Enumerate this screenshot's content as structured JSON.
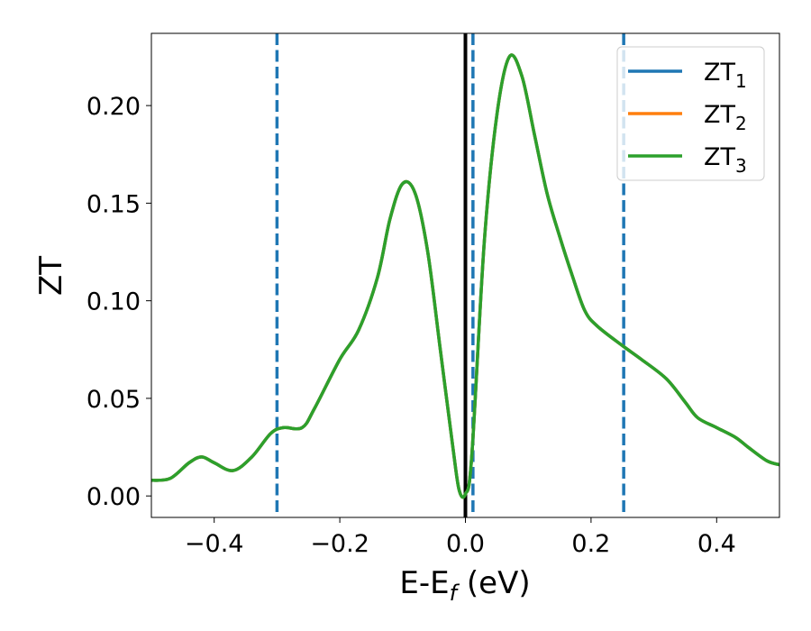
{
  "chart_data": {
    "type": "line",
    "title": "",
    "xlabel": "E-E",
    "xlabel_sub": "f",
    "xlabel_unit": " (eV)",
    "ylabel": "ZT",
    "xlim": [
      -0.5,
      0.5
    ],
    "ylim": [
      -0.011,
      0.237
    ],
    "x_ticks": [
      -0.4,
      -0.2,
      0.0,
      0.2,
      0.4
    ],
    "x_tick_labels": [
      "−0.4",
      "−0.2",
      "0.0",
      "0.2",
      "0.4"
    ],
    "y_ticks": [
      0.0,
      0.05,
      0.1,
      0.15,
      0.2
    ],
    "y_tick_labels": [
      "0.00",
      "0.05",
      "0.10",
      "0.15",
      "0.20"
    ],
    "grid": false,
    "legend_position": "top-right",
    "vlines": [
      {
        "x": -0.3,
        "style": "dashed",
        "color": "#1f77b4"
      },
      {
        "x": 0.0,
        "style": "solid",
        "color": "#000000"
      },
      {
        "x": 0.012,
        "style": "dashed",
        "color": "#1f77b4"
      },
      {
        "x": 0.252,
        "style": "dashed",
        "color": "#1f77b4"
      }
    ],
    "x": [
      -0.5,
      -0.47,
      -0.44,
      -0.42,
      -0.4,
      -0.37,
      -0.34,
      -0.31,
      -0.29,
      -0.26,
      -0.24,
      -0.2,
      -0.17,
      -0.14,
      -0.12,
      -0.1,
      -0.08,
      -0.06,
      -0.04,
      -0.02,
      -0.01,
      0.0,
      0.01,
      0.03,
      0.05,
      0.07,
      0.09,
      0.11,
      0.13,
      0.15,
      0.17,
      0.19,
      0.21,
      0.25,
      0.28,
      0.32,
      0.35,
      0.37,
      0.4,
      0.43,
      0.45,
      0.48,
      0.5
    ],
    "series": [
      {
        "name": "ZT",
        "name_sub": "1",
        "color": "#1f77b4",
        "values": [
          0.008,
          0.009,
          0.017,
          0.02,
          0.017,
          0.013,
          0.02,
          0.032,
          0.035,
          0.035,
          0.045,
          0.07,
          0.085,
          0.112,
          0.142,
          0.16,
          0.155,
          0.125,
          0.075,
          0.025,
          0.003,
          0.001,
          0.02,
          0.13,
          0.195,
          0.225,
          0.215,
          0.185,
          0.155,
          0.133,
          0.113,
          0.095,
          0.087,
          0.077,
          0.07,
          0.06,
          0.048,
          0.04,
          0.035,
          0.03,
          0.025,
          0.018,
          0.016
        ]
      },
      {
        "name": "ZT",
        "name_sub": "2",
        "color": "#ff7f0e",
        "values": [
          0.008,
          0.009,
          0.017,
          0.02,
          0.017,
          0.013,
          0.02,
          0.032,
          0.035,
          0.035,
          0.045,
          0.07,
          0.085,
          0.112,
          0.142,
          0.16,
          0.155,
          0.125,
          0.075,
          0.025,
          0.003,
          0.001,
          0.02,
          0.13,
          0.195,
          0.225,
          0.215,
          0.185,
          0.155,
          0.133,
          0.113,
          0.095,
          0.087,
          0.077,
          0.07,
          0.06,
          0.048,
          0.04,
          0.035,
          0.03,
          0.025,
          0.018,
          0.016
        ]
      },
      {
        "name": "ZT",
        "name_sub": "3",
        "color": "#2ca02c",
        "values": [
          0.008,
          0.009,
          0.017,
          0.02,
          0.017,
          0.013,
          0.02,
          0.032,
          0.035,
          0.035,
          0.045,
          0.07,
          0.085,
          0.112,
          0.142,
          0.16,
          0.155,
          0.125,
          0.075,
          0.025,
          0.003,
          0.001,
          0.02,
          0.13,
          0.195,
          0.225,
          0.215,
          0.185,
          0.155,
          0.133,
          0.113,
          0.095,
          0.087,
          0.077,
          0.07,
          0.06,
          0.048,
          0.04,
          0.035,
          0.03,
          0.025,
          0.018,
          0.016
        ]
      }
    ]
  }
}
